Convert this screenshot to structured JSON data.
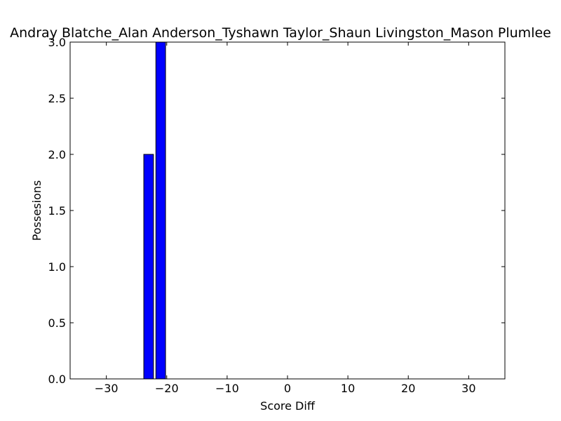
{
  "chart_data": {
    "type": "bar",
    "title": "Andray Blatche_Alan Anderson_Tyshawn Taylor_Shaun Livingston_Mason Plumlee",
    "xlabel": "Score Diff",
    "ylabel": "Possesions",
    "xlim": [
      -36,
      36
    ],
    "ylim": [
      0,
      3
    ],
    "bar_width": 1.6,
    "bar_color": "#0000ff",
    "grid": false,
    "x_ticks": [
      -30,
      -20,
      -10,
      0,
      10,
      20,
      30
    ],
    "x_tick_labels": [
      "−30",
      "−20",
      "−10",
      "0",
      "10",
      "20",
      "30"
    ],
    "y_ticks": [
      0,
      0.5,
      1,
      1.5,
      2,
      2.5,
      3
    ],
    "y_tick_labels": [
      "0.0",
      "0.5",
      "1.0",
      "1.5",
      "2.0",
      "2.5",
      "3.0"
    ],
    "x": [
      -23,
      -21
    ],
    "values": [
      2,
      3
    ]
  }
}
